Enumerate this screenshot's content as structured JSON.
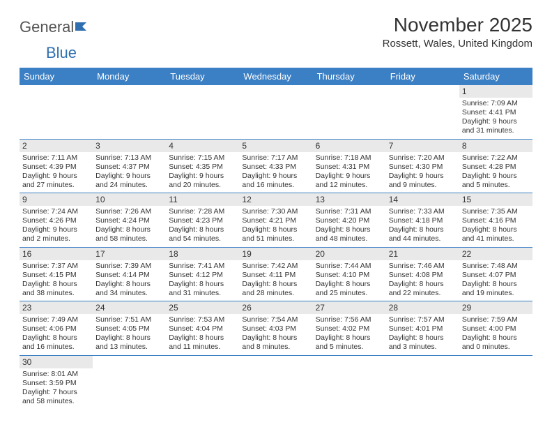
{
  "logo": {
    "text_a": "General",
    "text_b": "Blue"
  },
  "title": "November 2025",
  "location": "Rossett, Wales, United Kingdom",
  "colors": {
    "header_bg": "#3b7fc4",
    "header_text": "#ffffff",
    "daynum_bg": "#e9e9e9",
    "border": "#3b7fc4",
    "logo_blue": "#2f6fb0"
  },
  "weekdays": [
    "Sunday",
    "Monday",
    "Tuesday",
    "Wednesday",
    "Thursday",
    "Friday",
    "Saturday"
  ],
  "weeks": [
    [
      null,
      null,
      null,
      null,
      null,
      null,
      {
        "n": "1",
        "sr": "Sunrise: 7:09 AM",
        "ss": "Sunset: 4:41 PM",
        "dl": "Daylight: 9 hours and 31 minutes."
      }
    ],
    [
      {
        "n": "2",
        "sr": "Sunrise: 7:11 AM",
        "ss": "Sunset: 4:39 PM",
        "dl": "Daylight: 9 hours and 27 minutes."
      },
      {
        "n": "3",
        "sr": "Sunrise: 7:13 AM",
        "ss": "Sunset: 4:37 PM",
        "dl": "Daylight: 9 hours and 24 minutes."
      },
      {
        "n": "4",
        "sr": "Sunrise: 7:15 AM",
        "ss": "Sunset: 4:35 PM",
        "dl": "Daylight: 9 hours and 20 minutes."
      },
      {
        "n": "5",
        "sr": "Sunrise: 7:17 AM",
        "ss": "Sunset: 4:33 PM",
        "dl": "Daylight: 9 hours and 16 minutes."
      },
      {
        "n": "6",
        "sr": "Sunrise: 7:18 AM",
        "ss": "Sunset: 4:31 PM",
        "dl": "Daylight: 9 hours and 12 minutes."
      },
      {
        "n": "7",
        "sr": "Sunrise: 7:20 AM",
        "ss": "Sunset: 4:30 PM",
        "dl": "Daylight: 9 hours and 9 minutes."
      },
      {
        "n": "8",
        "sr": "Sunrise: 7:22 AM",
        "ss": "Sunset: 4:28 PM",
        "dl": "Daylight: 9 hours and 5 minutes."
      }
    ],
    [
      {
        "n": "9",
        "sr": "Sunrise: 7:24 AM",
        "ss": "Sunset: 4:26 PM",
        "dl": "Daylight: 9 hours and 2 minutes."
      },
      {
        "n": "10",
        "sr": "Sunrise: 7:26 AM",
        "ss": "Sunset: 4:24 PM",
        "dl": "Daylight: 8 hours and 58 minutes."
      },
      {
        "n": "11",
        "sr": "Sunrise: 7:28 AM",
        "ss": "Sunset: 4:23 PM",
        "dl": "Daylight: 8 hours and 54 minutes."
      },
      {
        "n": "12",
        "sr": "Sunrise: 7:30 AM",
        "ss": "Sunset: 4:21 PM",
        "dl": "Daylight: 8 hours and 51 minutes."
      },
      {
        "n": "13",
        "sr": "Sunrise: 7:31 AM",
        "ss": "Sunset: 4:20 PM",
        "dl": "Daylight: 8 hours and 48 minutes."
      },
      {
        "n": "14",
        "sr": "Sunrise: 7:33 AM",
        "ss": "Sunset: 4:18 PM",
        "dl": "Daylight: 8 hours and 44 minutes."
      },
      {
        "n": "15",
        "sr": "Sunrise: 7:35 AM",
        "ss": "Sunset: 4:16 PM",
        "dl": "Daylight: 8 hours and 41 minutes."
      }
    ],
    [
      {
        "n": "16",
        "sr": "Sunrise: 7:37 AM",
        "ss": "Sunset: 4:15 PM",
        "dl": "Daylight: 8 hours and 38 minutes."
      },
      {
        "n": "17",
        "sr": "Sunrise: 7:39 AM",
        "ss": "Sunset: 4:14 PM",
        "dl": "Daylight: 8 hours and 34 minutes."
      },
      {
        "n": "18",
        "sr": "Sunrise: 7:41 AM",
        "ss": "Sunset: 4:12 PM",
        "dl": "Daylight: 8 hours and 31 minutes."
      },
      {
        "n": "19",
        "sr": "Sunrise: 7:42 AM",
        "ss": "Sunset: 4:11 PM",
        "dl": "Daylight: 8 hours and 28 minutes."
      },
      {
        "n": "20",
        "sr": "Sunrise: 7:44 AM",
        "ss": "Sunset: 4:10 PM",
        "dl": "Daylight: 8 hours and 25 minutes."
      },
      {
        "n": "21",
        "sr": "Sunrise: 7:46 AM",
        "ss": "Sunset: 4:08 PM",
        "dl": "Daylight: 8 hours and 22 minutes."
      },
      {
        "n": "22",
        "sr": "Sunrise: 7:48 AM",
        "ss": "Sunset: 4:07 PM",
        "dl": "Daylight: 8 hours and 19 minutes."
      }
    ],
    [
      {
        "n": "23",
        "sr": "Sunrise: 7:49 AM",
        "ss": "Sunset: 4:06 PM",
        "dl": "Daylight: 8 hours and 16 minutes."
      },
      {
        "n": "24",
        "sr": "Sunrise: 7:51 AM",
        "ss": "Sunset: 4:05 PM",
        "dl": "Daylight: 8 hours and 13 minutes."
      },
      {
        "n": "25",
        "sr": "Sunrise: 7:53 AM",
        "ss": "Sunset: 4:04 PM",
        "dl": "Daylight: 8 hours and 11 minutes."
      },
      {
        "n": "26",
        "sr": "Sunrise: 7:54 AM",
        "ss": "Sunset: 4:03 PM",
        "dl": "Daylight: 8 hours and 8 minutes."
      },
      {
        "n": "27",
        "sr": "Sunrise: 7:56 AM",
        "ss": "Sunset: 4:02 PM",
        "dl": "Daylight: 8 hours and 5 minutes."
      },
      {
        "n": "28",
        "sr": "Sunrise: 7:57 AM",
        "ss": "Sunset: 4:01 PM",
        "dl": "Daylight: 8 hours and 3 minutes."
      },
      {
        "n": "29",
        "sr": "Sunrise: 7:59 AM",
        "ss": "Sunset: 4:00 PM",
        "dl": "Daylight: 8 hours and 0 minutes."
      }
    ],
    [
      {
        "n": "30",
        "sr": "Sunrise: 8:01 AM",
        "ss": "Sunset: 3:59 PM",
        "dl": "Daylight: 7 hours and 58 minutes."
      },
      null,
      null,
      null,
      null,
      null,
      null
    ]
  ]
}
